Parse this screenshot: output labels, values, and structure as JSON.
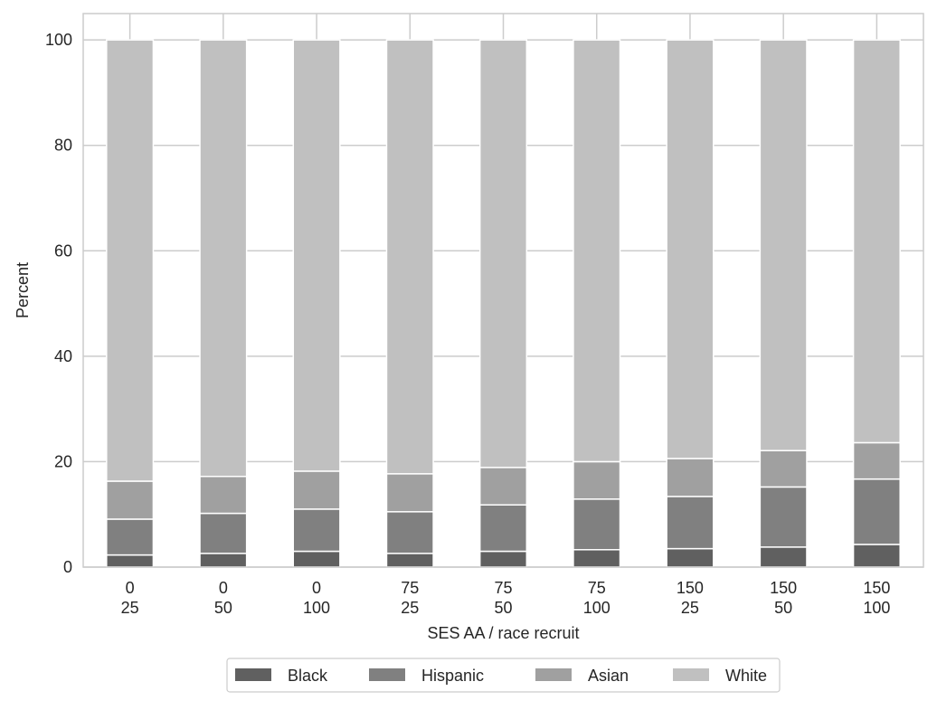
{
  "chart_data": {
    "type": "bar",
    "stacked": true,
    "xlabel": "SES AA / race recruit",
    "ylabel": "Percent",
    "ylim": [
      0,
      105
    ],
    "yticks": [
      0,
      20,
      40,
      60,
      80,
      100
    ],
    "grid": true,
    "legend_position": "bottom-center",
    "categories": [
      [
        "0",
        "25"
      ],
      [
        "0",
        "50"
      ],
      [
        "0",
        "100"
      ],
      [
        "75",
        "25"
      ],
      [
        "75",
        "50"
      ],
      [
        "75",
        "100"
      ],
      [
        "150",
        "25"
      ],
      [
        "150",
        "50"
      ],
      [
        "150",
        "100"
      ]
    ],
    "series": [
      {
        "name": "Black",
        "color": "#606060",
        "values": [
          2.3,
          2.6,
          3.0,
          2.6,
          3.0,
          3.3,
          3.5,
          3.8,
          4.3
        ]
      },
      {
        "name": "Hispanic",
        "color": "#808080",
        "values": [
          6.8,
          7.6,
          8.0,
          7.9,
          8.8,
          9.6,
          9.9,
          11.4,
          12.4
        ]
      },
      {
        "name": "Asian",
        "color": "#a0a0a0",
        "values": [
          7.2,
          7.0,
          7.2,
          7.2,
          7.1,
          7.1,
          7.2,
          6.9,
          6.9
        ]
      },
      {
        "name": "White",
        "color": "#c0c0c0",
        "values": [
          83.7,
          82.8,
          81.8,
          82.3,
          81.1,
          80.0,
          79.4,
          77.9,
          76.4
        ]
      }
    ]
  }
}
